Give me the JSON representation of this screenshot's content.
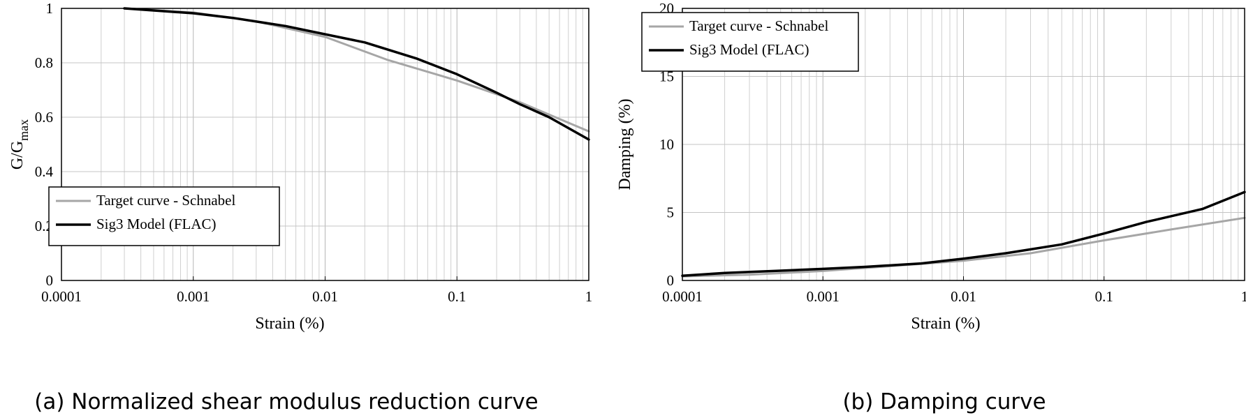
{
  "chart_data": [
    {
      "type": "line",
      "caption": "(a) Normalized shear modulus reduction curve",
      "xlabel": "Strain (%)",
      "ylabel": "G/G",
      "ylabel_sub": "max",
      "xscale": "log",
      "xlim": [
        0.0001,
        1
      ],
      "ylim": [
        0,
        1
      ],
      "xticks": [
        "0.0001",
        "0.001",
        "0.01",
        "0.1",
        "1"
      ],
      "yticks": [
        "0",
        "0.2",
        "0.4",
        "0.6",
        "0.8",
        "1"
      ],
      "grid": true,
      "legend_position": "bottom-left",
      "series": [
        {
          "name": "Target curve - Schnabel",
          "color": "#a6a6a6",
          "x": [
            0.0003,
            0.001,
            0.003,
            0.01,
            0.03,
            0.1,
            0.3,
            1
          ],
          "y": [
            1.0,
            0.985,
            0.952,
            0.895,
            0.81,
            0.735,
            0.655,
            0.548
          ]
        },
        {
          "name": "Sig3 Model (FLAC)",
          "color": "#000000",
          "x": [
            0.0003,
            0.001,
            0.002,
            0.005,
            0.01,
            0.02,
            0.05,
            0.1,
            0.2,
            0.3,
            0.5,
            1
          ],
          "y": [
            1.0,
            0.982,
            0.965,
            0.935,
            0.905,
            0.875,
            0.815,
            0.758,
            0.69,
            0.648,
            0.6,
            0.518
          ]
        }
      ]
    },
    {
      "type": "line",
      "caption": "(b) Damping curve",
      "xlabel": "Strain (%)",
      "ylabel": "Damping (%)",
      "xscale": "log",
      "xlim": [
        0.0001,
        1
      ],
      "ylim": [
        0,
        20
      ],
      "xticks": [
        "0.0001",
        "0.001",
        "0.01",
        "0.1",
        "1"
      ],
      "yticks": [
        "0",
        "5",
        "10",
        "15",
        "20"
      ],
      "grid": true,
      "legend_position": "top-left",
      "series": [
        {
          "name": "Target curve - Schnabel",
          "color": "#a6a6a6",
          "x": [
            0.0001,
            0.0003,
            0.001,
            0.003,
            0.01,
            0.03,
            0.1,
            0.3,
            1
          ],
          "y": [
            0.3,
            0.42,
            0.7,
            1.05,
            1.45,
            2.0,
            2.95,
            3.75,
            4.6
          ]
        },
        {
          "name": "Sig3 Model (FLAC)",
          "color": "#000000",
          "x": [
            0.0001,
            0.0002,
            0.0005,
            0.001,
            0.002,
            0.005,
            0.01,
            0.02,
            0.05,
            0.1,
            0.2,
            0.5,
            1
          ],
          "y": [
            0.35,
            0.55,
            0.72,
            0.85,
            1.0,
            1.25,
            1.6,
            2.0,
            2.65,
            3.45,
            4.3,
            5.25,
            6.5
          ]
        }
      ]
    }
  ]
}
